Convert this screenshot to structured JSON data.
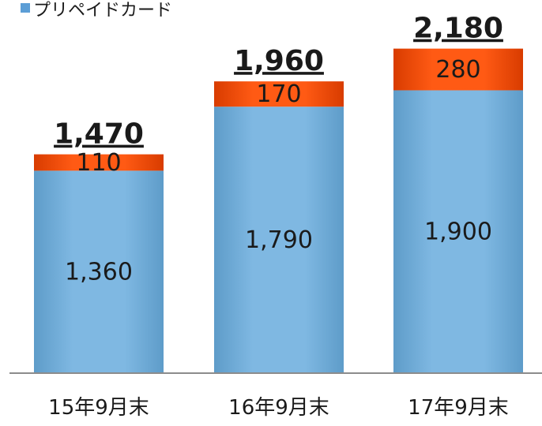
{
  "legend": {
    "label": "プリペイドカード"
  },
  "colors": {
    "blue_fill": "#7fb8e2",
    "blue_edge": "#5e9cc9",
    "orange_fill": "#ff5a14",
    "orange_edge": "#d83c00",
    "axis": "#8c8c8c",
    "text": "#1a1a1a",
    "swatch": "#5c9ed6"
  },
  "chart_data": {
    "type": "bar",
    "stacked": true,
    "categories": [
      "15年9月末",
      "16年9月末",
      "17年9月末"
    ],
    "series": [
      {
        "name": "プリペイドカード",
        "values": [
          1360,
          1790,
          1900
        ]
      },
      {
        "values": [
          110,
          170,
          280
        ]
      }
    ],
    "segment_labels": [
      [
        "1,360",
        "1,790",
        "1,900"
      ],
      [
        "110",
        "170",
        "280"
      ]
    ],
    "totals": [
      1470,
      1960,
      2180
    ],
    "total_labels": [
      "1,470",
      "1,960",
      "2,180"
    ],
    "ylim": [
      0,
      2200
    ],
    "grid": false,
    "legend_position": "top-left"
  }
}
